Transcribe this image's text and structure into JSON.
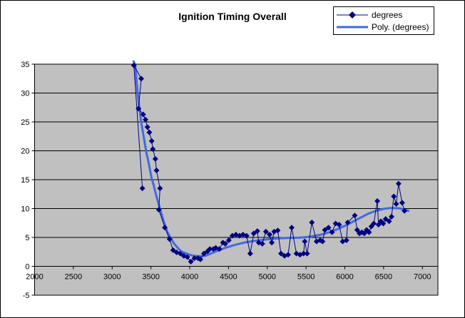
{
  "chart_data": {
    "type": "line",
    "title": "Ignition Timing Overall",
    "xlabel": "",
    "ylabel": "",
    "x_range": [
      2000,
      7200
    ],
    "y_range": [
      -5,
      35
    ],
    "x_tick_values": [
      2000,
      2500,
      3000,
      3500,
      4000,
      4500,
      5000,
      5500,
      6000,
      6500,
      7000
    ],
    "y_tick_values": [
      -5,
      0,
      5,
      10,
      15,
      20,
      25,
      30,
      35
    ],
    "grid": "horizontal",
    "legend_position": "top-right",
    "plot_bg": "#c0c0c0",
    "axis_color": "#000000",
    "series": [
      {
        "name": "degrees",
        "color": "#000080",
        "marker": "diamond",
        "line_width": 1,
        "points": [
          [
            3390,
            13.5
          ],
          [
            3280,
            34.8
          ],
          [
            3375,
            32.5
          ],
          [
            3340,
            27.3
          ],
          [
            3400,
            26.3
          ],
          [
            3430,
            25.4
          ],
          [
            3455,
            24.1
          ],
          [
            3480,
            23.2
          ],
          [
            3510,
            21.7
          ],
          [
            3525,
            20.3
          ],
          [
            3557,
            18.6
          ],
          [
            3572,
            16.6
          ],
          [
            3617,
            13.5
          ],
          [
            3602,
            9.8
          ],
          [
            3679,
            6.7
          ],
          [
            3740,
            4.7
          ],
          [
            3786,
            2.8
          ],
          [
            3832,
            2.4
          ],
          [
            3878,
            2.2
          ],
          [
            3924,
            1.8
          ],
          [
            3969,
            1.6
          ],
          [
            4015,
            0.8
          ],
          [
            4061,
            1.4
          ],
          [
            4107,
            1.4
          ],
          [
            4138,
            1.2
          ],
          [
            4183,
            2.2
          ],
          [
            4229,
            2.6
          ],
          [
            4260,
            3.0
          ],
          [
            4306,
            3.0
          ],
          [
            4336,
            3.2
          ],
          [
            4382,
            3.0
          ],
          [
            4428,
            4.1
          ],
          [
            4459,
            3.9
          ],
          [
            4504,
            4.5
          ],
          [
            4550,
            5.3
          ],
          [
            4596,
            5.5
          ],
          [
            4642,
            5.3
          ],
          [
            4687,
            5.5
          ],
          [
            4733,
            5.3
          ],
          [
            4780,
            2.2
          ],
          [
            4826,
            5.7
          ],
          [
            4872,
            6.1
          ],
          [
            4890,
            4.1
          ],
          [
            4936,
            3.9
          ],
          [
            4982,
            6.0
          ],
          [
            5030,
            5.5
          ],
          [
            5058,
            4.1
          ],
          [
            5089,
            6.0
          ],
          [
            5135,
            6.2
          ],
          [
            5177,
            2.2
          ],
          [
            5223,
            1.8
          ],
          [
            5269,
            2.0
          ],
          [
            5315,
            6.7
          ],
          [
            5376,
            2.2
          ],
          [
            5422,
            2.0
          ],
          [
            5468,
            2.2
          ],
          [
            5483,
            4.3
          ],
          [
            5514,
            2.2
          ],
          [
            5575,
            7.6
          ],
          [
            5636,
            4.3
          ],
          [
            5682,
            4.5
          ],
          [
            5713,
            4.3
          ],
          [
            5743,
            6.3
          ],
          [
            5789,
            6.7
          ],
          [
            5835,
            5.9
          ],
          [
            5881,
            7.4
          ],
          [
            5927,
            7.2
          ],
          [
            5972,
            4.3
          ],
          [
            6021,
            4.5
          ],
          [
            6037,
            7.6
          ],
          [
            6128,
            8.8
          ],
          [
            6159,
            6.3
          ],
          [
            6189,
            5.7
          ],
          [
            6220,
            5.9
          ],
          [
            6251,
            5.7
          ],
          [
            6281,
            6.3
          ],
          [
            6312,
            5.9
          ],
          [
            6342,
            6.9
          ],
          [
            6373,
            7.4
          ],
          [
            6419,
            11.3
          ],
          [
            6434,
            7.2
          ],
          [
            6465,
            7.8
          ],
          [
            6495,
            7.4
          ],
          [
            6526,
            8.2
          ],
          [
            6571,
            7.8
          ],
          [
            6602,
            8.6
          ],
          [
            6632,
            12.1
          ],
          [
            6663,
            10.8
          ],
          [
            6693,
            14.3
          ],
          [
            6739,
            11.0
          ],
          [
            6769,
            9.6
          ]
        ]
      },
      {
        "name": "Poly. (degrees)",
        "color": "#4169e1",
        "marker": "none",
        "style": "trendline",
        "line_width": 3,
        "points": [
          [
            3276,
            35.5
          ],
          [
            3297,
            34.9
          ],
          [
            3312,
            32.4
          ],
          [
            3330,
            29.9
          ],
          [
            3350,
            27.5
          ],
          [
            3375,
            24.9
          ],
          [
            3405,
            22.6
          ],
          [
            3440,
            19.8
          ],
          [
            3475,
            17.6
          ],
          [
            3510,
            15.2
          ],
          [
            3530,
            14.3
          ],
          [
            3570,
            12.2
          ],
          [
            3620,
            9.8
          ],
          [
            3665,
            7.8
          ],
          [
            3710,
            6.0
          ],
          [
            3755,
            4.9
          ],
          [
            3800,
            3.9
          ],
          [
            3845,
            3.2
          ],
          [
            3890,
            2.6
          ],
          [
            3940,
            2.3
          ],
          [
            4000,
            2.0
          ],
          [
            4060,
            1.8
          ],
          [
            4150,
            1.75
          ],
          [
            4210,
            1.85
          ],
          [
            4340,
            2.6
          ],
          [
            4460,
            3.2
          ],
          [
            4580,
            3.7
          ],
          [
            4700,
            4.1
          ],
          [
            4830,
            4.4
          ],
          [
            4950,
            4.6
          ],
          [
            5100,
            4.8
          ],
          [
            5250,
            4.9
          ],
          [
            5400,
            4.95
          ],
          [
            5500,
            5.05
          ],
          [
            5600,
            5.25
          ],
          [
            5700,
            5.5
          ],
          [
            5800,
            5.9
          ],
          [
            5900,
            6.4
          ],
          [
            6000,
            7.0
          ],
          [
            6100,
            7.7
          ],
          [
            6200,
            8.4
          ],
          [
            6300,
            9.1
          ],
          [
            6400,
            9.6
          ],
          [
            6500,
            9.95
          ],
          [
            6600,
            10.1
          ],
          [
            6700,
            10.05
          ],
          [
            6820,
            9.6
          ]
        ]
      }
    ]
  }
}
